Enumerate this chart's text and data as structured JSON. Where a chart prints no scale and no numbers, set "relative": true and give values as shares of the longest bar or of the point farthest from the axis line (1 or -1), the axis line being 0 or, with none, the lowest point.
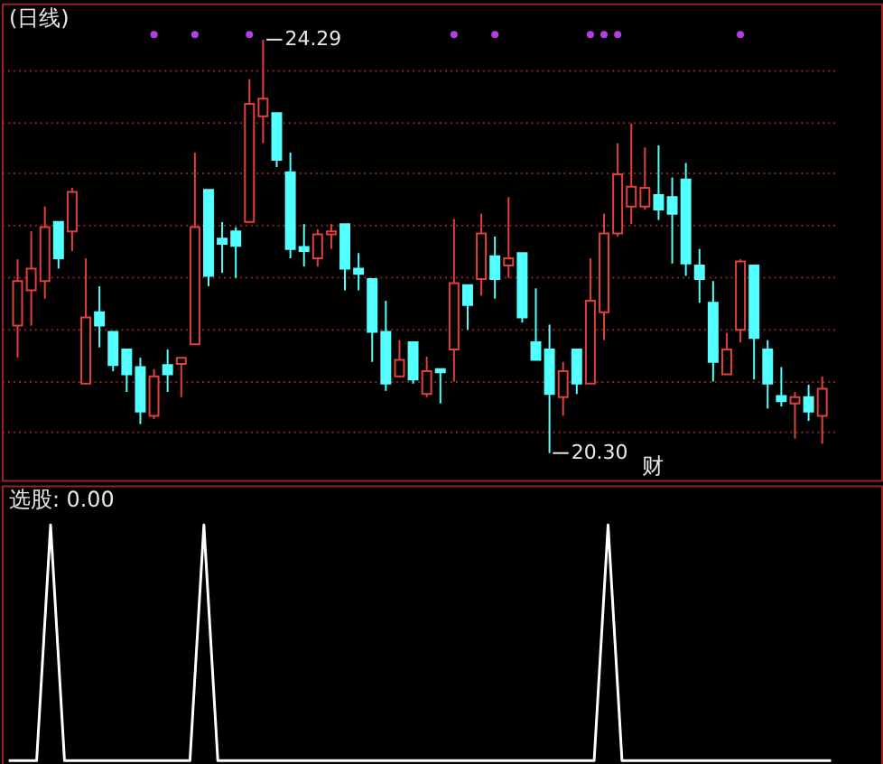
{
  "chart_data": [
    {
      "type": "candlestick",
      "title": "(日线)",
      "categories": [
        null,
        null,
        null,
        null,
        null,
        null,
        null,
        null,
        null,
        null,
        null,
        null,
        null,
        null,
        null,
        null,
        null,
        null,
        null,
        null,
        null,
        null,
        null,
        null,
        null,
        null,
        null,
        null,
        null,
        null,
        null,
        null,
        null,
        null,
        null,
        null,
        null,
        null,
        null,
        null,
        null,
        null,
        null,
        null,
        null,
        null,
        null,
        null,
        null,
        null,
        null,
        null,
        null,
        null,
        null,
        null,
        null,
        null,
        null,
        null
      ],
      "ohlc": [
        [
          21.53,
          22.17,
          21.22,
          21.96
        ],
        [
          21.87,
          22.44,
          21.53,
          22.08
        ],
        [
          21.96,
          22.68,
          21.79,
          22.48
        ],
        [
          22.53,
          22.53,
          22.08,
          22.18
        ],
        [
          22.44,
          22.86,
          22.25,
          22.82
        ],
        [
          20.97,
          22.18,
          20.96,
          21.61
        ],
        [
          21.66,
          21.91,
          21.32,
          21.53
        ],
        [
          21.47,
          21.47,
          21.09,
          21.15
        ],
        [
          21.3,
          21.3,
          20.89,
          21.06
        ],
        [
          21.13,
          21.22,
          20.58,
          20.7
        ],
        [
          20.66,
          21.11,
          20.63,
          21.04
        ],
        [
          21.15,
          21.3,
          20.89,
          21.06
        ],
        [
          21.16,
          21.22,
          20.84,
          21.22
        ],
        [
          21.35,
          23.2,
          21.35,
          22.48
        ],
        [
          22.84,
          22.84,
          21.91,
          22.01
        ],
        [
          22.37,
          22.53,
          22.04,
          22.32
        ],
        [
          22.44,
          22.48,
          21.99,
          22.3
        ],
        [
          22.53,
          23.91,
          22.53,
          23.67
        ],
        [
          23.55,
          24.29,
          23.29,
          23.72
        ],
        [
          23.58,
          23.58,
          23.06,
          23.13
        ],
        [
          23.01,
          23.2,
          22.18,
          22.27
        ],
        [
          22.29,
          22.51,
          22.1,
          22.25
        ],
        [
          22.18,
          22.46,
          22.1,
          22.41
        ],
        [
          22.41,
          22.51,
          22.27,
          22.44
        ],
        [
          22.51,
          22.51,
          21.87,
          22.08
        ],
        [
          22.08,
          22.23,
          21.87,
          22.03
        ],
        [
          21.98,
          21.98,
          21.18,
          21.47
        ],
        [
          21.47,
          21.77,
          20.9,
          20.97
        ],
        [
          21.04,
          21.39,
          21.03,
          21.2
        ],
        [
          21.37,
          21.37,
          20.97,
          21.01
        ],
        [
          20.87,
          21.23,
          20.84,
          21.09
        ],
        [
          21.11,
          21.11,
          20.78,
          21.08
        ],
        [
          21.3,
          22.56,
          20.99,
          21.94
        ],
        [
          21.92,
          21.92,
          21.49,
          21.73
        ],
        [
          21.98,
          22.61,
          21.82,
          22.42
        ],
        [
          22.2,
          22.39,
          21.79,
          21.98
        ],
        [
          22.11,
          22.77,
          21.99,
          22.18
        ],
        [
          22.23,
          22.23,
          21.56,
          21.61
        ],
        [
          21.37,
          21.89,
          21.2,
          21.2
        ],
        [
          21.3,
          21.54,
          20.3,
          20.87
        ],
        [
          20.84,
          21.18,
          20.66,
          21.09
        ],
        [
          21.3,
          21.3,
          20.87,
          20.97
        ],
        [
          20.97,
          22.18,
          20.97,
          21.77
        ],
        [
          21.66,
          22.61,
          21.39,
          22.42
        ],
        [
          22.42,
          23.29,
          22.39,
          22.99
        ],
        [
          22.68,
          23.48,
          22.51,
          22.87
        ],
        [
          22.68,
          23.25,
          22.65,
          22.86
        ],
        [
          22.79,
          23.27,
          22.55,
          22.65
        ],
        [
          22.77,
          22.96,
          22.13,
          22.61
        ],
        [
          22.94,
          23.1,
          22.01,
          22.13
        ],
        [
          22.11,
          22.27,
          21.75,
          21.98
        ],
        [
          21.75,
          21.96,
          20.99,
          21.18
        ],
        [
          21.06,
          21.46,
          21.06,
          21.3
        ],
        [
          21.49,
          22.17,
          21.37,
          22.15
        ],
        [
          22.11,
          22.11,
          21.01,
          21.41
        ],
        [
          21.3,
          21.39,
          20.73,
          20.97
        ],
        [
          20.85,
          21.13,
          20.75,
          20.8
        ],
        [
          20.78,
          20.89,
          20.44,
          20.84
        ],
        [
          20.84,
          20.96,
          20.61,
          20.7
        ],
        [
          20.66,
          21.04,
          20.39,
          20.92
        ]
      ],
      "colors": [
        "#e0403c",
        "#e0403c",
        "#e0403c",
        "#54ffff",
        "#e0403c",
        "#e0403c",
        "#54ffff",
        "#54ffff",
        "#54ffff",
        "#54ffff",
        "#e0403c",
        "#54ffff",
        "#e0403c",
        "#e0403c",
        "#54ffff",
        "#54ffff",
        "#54ffff",
        "#e0403c",
        "#e0403c",
        "#54ffff",
        "#54ffff",
        "#54ffff",
        "#e0403c",
        "#e0403c",
        "#54ffff",
        "#54ffff",
        "#54ffff",
        "#54ffff",
        "#e0403c",
        "#54ffff",
        "#e0403c",
        "#54ffff",
        "#e0403c",
        "#54ffff",
        "#e0403c",
        "#54ffff",
        "#e0403c",
        "#54ffff",
        "#54ffff",
        "#54ffff",
        "#e0403c",
        "#54ffff",
        "#e0403c",
        "#e0403c",
        "#e0403c",
        "#e0403c",
        "#e0403c",
        "#54ffff",
        "#54ffff",
        "#54ffff",
        "#54ffff",
        "#54ffff",
        "#e0403c",
        "#e0403c",
        "#54ffff",
        "#54ffff",
        "#54ffff",
        "#e0403c",
        "#54ffff",
        "#e0403c"
      ],
      "series": [
        {
          "type": "scatter",
          "color": "#b040e0",
          "marker": "circle",
          "values": [
            null,
            null,
            null,
            null,
            null,
            null,
            null,
            null,
            null,
            null,
            24.34,
            null,
            null,
            24.34,
            null,
            null,
            null,
            24.34,
            null,
            null,
            null,
            null,
            null,
            null,
            null,
            null,
            null,
            null,
            null,
            null,
            null,
            null,
            24.34,
            null,
            null,
            24.34,
            null,
            null,
            null,
            null,
            null,
            null,
            24.34,
            24.34,
            24.34,
            null,
            null,
            null,
            null,
            null,
            null,
            null,
            null,
            24.34,
            null,
            null,
            null,
            null,
            null,
            null
          ]
        }
      ],
      "ylim": [
        20.04,
        24.64
      ],
      "yticks": [
        {
          "value": 20.5,
          "label": null
        },
        {
          "value": 21,
          "label": null
        },
        {
          "value": 21.5,
          "label": null
        },
        {
          "value": 22,
          "label": null
        },
        {
          "value": 22.5,
          "label": null
        },
        {
          "value": 23,
          "label": null
        },
        {
          "value": 23.5,
          "label": null
        },
        {
          "value": 24,
          "label": null
        }
      ],
      "grid": "y",
      "tick_labels": false,
      "annotations": [
        "24.29",
        "20.30",
        "财"
      ]
    },
    {
      "type": "line",
      "title": "选股: 0.00",
      "relative": true,
      "color": "#ffffff",
      "categories": [
        null,
        null,
        null,
        null,
        null,
        null,
        null,
        null,
        null,
        null,
        null,
        null,
        null,
        null,
        null,
        null,
        null,
        null,
        null,
        null,
        null,
        null,
        null,
        null,
        null,
        null,
        null,
        null,
        null,
        null,
        null,
        null,
        null,
        null,
        null,
        null,
        null,
        null,
        null,
        null,
        null,
        null,
        null,
        null,
        null,
        null,
        null,
        null,
        null,
        null,
        null,
        null,
        null,
        null,
        null,
        null,
        null,
        null,
        null,
        null
      ],
      "values": [
        0,
        0,
        0,
        1,
        0,
        0,
        0,
        0,
        0,
        0,
        0,
        0,
        0,
        0,
        1,
        0,
        0,
        0,
        0,
        0,
        0,
        0,
        0,
        0,
        0,
        0,
        0,
        0,
        0,
        0,
        0,
        0,
        0,
        0,
        0,
        0,
        0,
        0,
        0,
        0,
        0,
        0,
        0,
        1,
        0,
        0,
        0,
        0,
        0,
        0,
        0,
        0,
        0,
        0,
        0,
        0,
        0,
        0,
        0,
        0
      ],
      "tick_labels": false
    }
  ]
}
